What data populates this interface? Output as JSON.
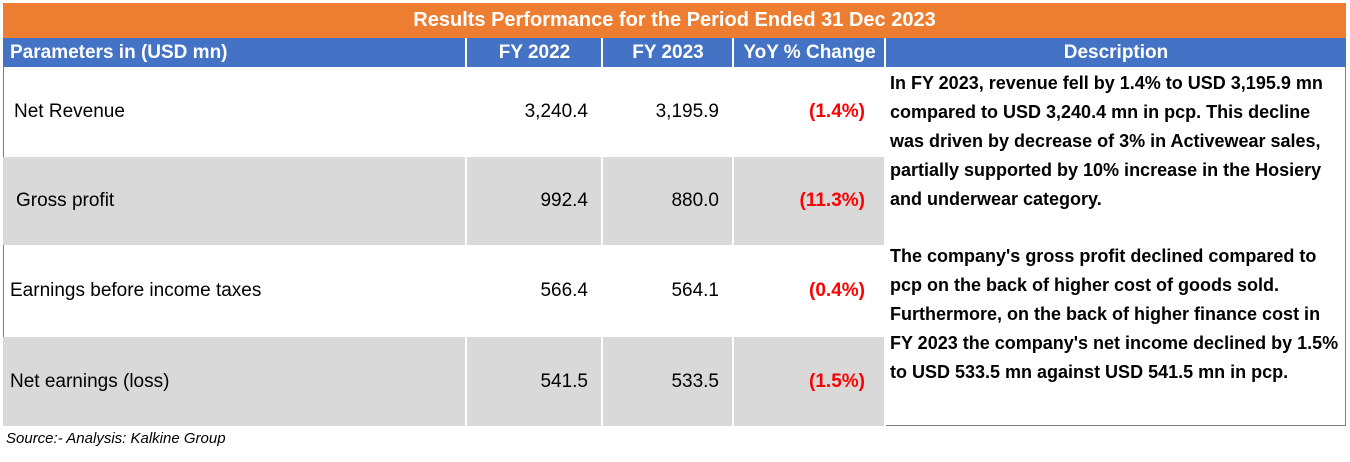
{
  "title": "Results Performance for the Period Ended 31 Dec 2023",
  "headers": {
    "parameters": "Parameters in (USD mn)",
    "fy2022": "FY 2022",
    "fy2023": "FY 2023",
    "yoy": "YoY % Change",
    "description": "Description"
  },
  "rows": [
    {
      "label": "Net Revenue",
      "fy2022": "3,240.4",
      "fy2023": "3,195.9",
      "yoy": "(1.4%)"
    },
    {
      "label": "Gross profit",
      "fy2022": "992.4",
      "fy2023": "880.0",
      "yoy": "(11.3%)"
    },
    {
      "label": "Earnings before income taxes",
      "fy2022": "566.4",
      "fy2023": "564.1",
      "yoy": "(0.4%)"
    },
    {
      "label": "Net earnings (loss)",
      "fy2022": "541.5",
      "fy2023": "533.5",
      "yoy": "(1.5%)"
    }
  ],
  "descriptions": [
    "In FY 2023, revenue fell by 1.4% to USD 3,195.9 mn compared to USD 3,240.4 mn in pcp. This decline was driven by decrease of 3% in Activewear sales, partially supported by 10% increase in the Hosiery and underwear category.",
    "The company's gross profit declined compared to pcp on the back of higher cost of goods sold. Furthermore, on the back of higher finance cost in FY 2023 the company's net income declined by 1.5% to USD 533.5 mn against USD 541.5 mn in pcp."
  ],
  "source": "Source:- Analysis: Kalkine Group",
  "colors": {
    "title_bg": "#ed7d31",
    "header_bg": "#4472c4",
    "row_alt_bg": "#d9d9d9",
    "negative": "#ff0000"
  }
}
